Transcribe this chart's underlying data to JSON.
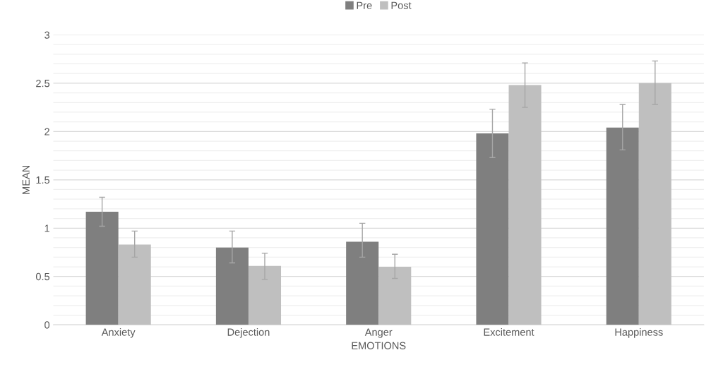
{
  "chart_data": {
    "type": "bar",
    "xlabel": "EMOTIONS",
    "ylabel": "MEAN",
    "categories": [
      "Anxiety",
      "Dejection",
      "Anger",
      "Excitement",
      "Happiness"
    ],
    "series": [
      {
        "name": "Pre",
        "color": "#7f7f7f",
        "values": [
          1.17,
          0.8,
          0.86,
          1.98,
          2.04
        ],
        "errors": [
          [
            1.02,
            1.32
          ],
          [
            0.64,
            0.97
          ],
          [
            0.7,
            1.05
          ],
          [
            1.73,
            2.23
          ],
          [
            1.81,
            2.28
          ]
        ]
      },
      {
        "name": "Post",
        "color": "#bfbfbf",
        "values": [
          0.83,
          0.61,
          0.6,
          2.48,
          2.5
        ],
        "errors": [
          [
            0.7,
            0.97
          ],
          [
            0.47,
            0.74
          ],
          [
            0.48,
            0.73
          ],
          [
            2.25,
            2.71
          ],
          [
            2.28,
            2.73
          ]
        ]
      }
    ],
    "ylim": [
      0,
      3
    ],
    "yticks": [
      0,
      {
        "value": 0.1,
        "label": null
      },
      {
        "value": 0.2,
        "label": null
      },
      {
        "value": 0.3,
        "label": null
      },
      {
        "value": 0.4,
        "label": null
      },
      {
        "value": 0.5,
        "label": "0.5"
      },
      {
        "value": 0.6,
        "label": null
      },
      {
        "value": 0.7,
        "label": null
      },
      {
        "value": 0.8,
        "label": null
      },
      {
        "value": 0.9,
        "label": null
      },
      1,
      {
        "value": 1.1,
        "label": null
      },
      {
        "value": 1.2,
        "label": null
      },
      {
        "value": 1.3,
        "label": null
      },
      {
        "value": 1.4,
        "label": null
      },
      {
        "value": 1.5,
        "label": "1.5"
      },
      {
        "value": 1.6,
        "label": null
      },
      {
        "value": 1.7,
        "label": null
      },
      {
        "value": 1.8,
        "label": null
      },
      {
        "value": 1.9,
        "label": null
      },
      2,
      {
        "value": 2.1,
        "label": null
      },
      {
        "value": 2.2,
        "label": null
      },
      {
        "value": 2.3,
        "label": null
      },
      {
        "value": 2.4,
        "label": null
      },
      {
        "value": 2.5,
        "label": "2.5"
      },
      {
        "value": 2.6,
        "label": null
      },
      {
        "value": 2.7,
        "label": null
      },
      {
        "value": 2.8,
        "label": null
      },
      {
        "value": 2.9,
        "label": null
      },
      3
    ],
    "grid": "y",
    "legend": "top"
  }
}
